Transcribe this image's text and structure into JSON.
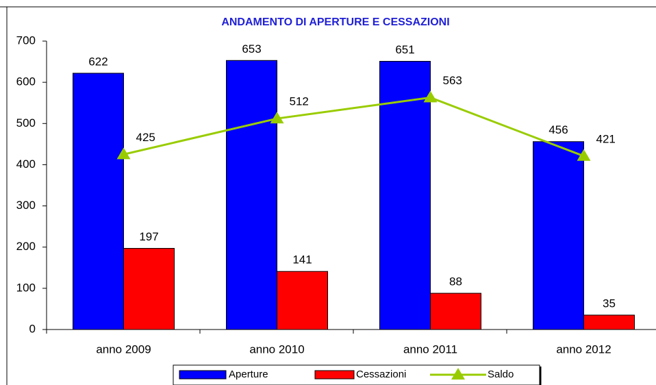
{
  "chart_data": {
    "type": "bar",
    "title": "ANDAMENTO DI APERTURE E CESSAZIONI",
    "categories": [
      "anno 2009",
      "anno 2010",
      "anno 2011",
      "anno 2012"
    ],
    "series": [
      {
        "name": "Aperture",
        "color": "#0000ff",
        "type": "bar",
        "values": [
          622,
          653,
          651,
          456
        ]
      },
      {
        "name": "Cessazioni",
        "color": "#ff0000",
        "type": "bar",
        "values": [
          197,
          141,
          88,
          35
        ]
      },
      {
        "name": "Saldo",
        "color": "#99cc00",
        "type": "line",
        "values": [
          425,
          512,
          563,
          421
        ]
      }
    ],
    "ylim": [
      0,
      700
    ],
    "yticks": [
      0,
      100,
      200,
      300,
      400,
      500,
      600,
      700
    ],
    "grid": false,
    "legend": "bottom"
  }
}
